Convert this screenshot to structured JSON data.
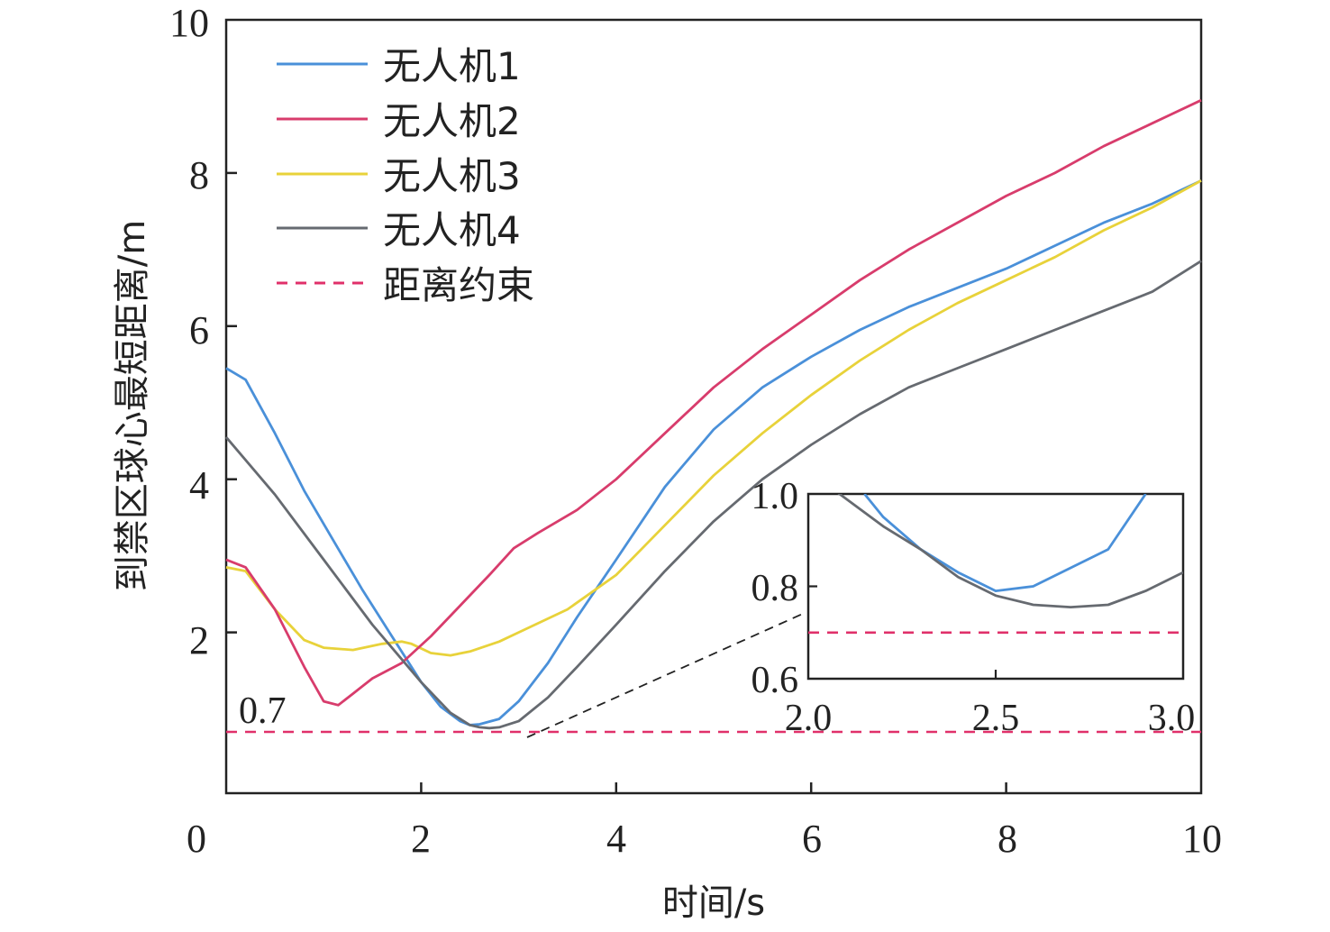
{
  "chart_data": {
    "type": "line",
    "title": "",
    "xlabel": "时间/s",
    "ylabel": "到禁区球心最短距离/m",
    "xlim": [
      0,
      10
    ],
    "ylim": [
      -0.1,
      10
    ],
    "x_ticks": [
      "0",
      "2",
      "4",
      "6",
      "8",
      "10"
    ],
    "y_ticks": [
      "2",
      "4",
      "6",
      "8",
      "10"
    ],
    "grid": false,
    "legend_position": "top-left",
    "series": [
      {
        "name": "无人机1",
        "color": "#4a90d9",
        "x": [
          0,
          0.2,
          0.5,
          0.8,
          1.1,
          1.4,
          1.7,
          2.0,
          2.2,
          2.4,
          2.5,
          2.6,
          2.8,
          3.0,
          3.3,
          3.6,
          4.0,
          4.5,
          5.0,
          5.5,
          6.0,
          6.5,
          7.0,
          7.5,
          8.0,
          8.5,
          9.0,
          9.5,
          10.0
        ],
        "y": [
          5.45,
          5.3,
          4.6,
          3.85,
          3.2,
          2.55,
          1.95,
          1.35,
          1.03,
          0.84,
          0.79,
          0.8,
          0.87,
          1.1,
          1.6,
          2.2,
          2.95,
          3.9,
          4.65,
          5.2,
          5.6,
          5.95,
          6.25,
          6.5,
          6.75,
          7.05,
          7.35,
          7.6,
          7.9
        ]
      },
      {
        "name": "无人机2",
        "color": "#d83c6c",
        "x": [
          0,
          0.2,
          0.5,
          0.8,
          1.0,
          1.15,
          1.3,
          1.5,
          1.8,
          2.1,
          2.4,
          2.7,
          2.95,
          3.2,
          3.6,
          4.0,
          4.5,
          5.0,
          5.5,
          6.0,
          6.5,
          7.0,
          7.5,
          8.0,
          8.5,
          9.0,
          9.5,
          10.0
        ],
        "y": [
          2.95,
          2.85,
          2.3,
          1.55,
          1.1,
          1.05,
          1.2,
          1.4,
          1.6,
          1.95,
          2.35,
          2.75,
          3.1,
          3.3,
          3.6,
          4.0,
          4.6,
          5.2,
          5.7,
          6.15,
          6.6,
          7.0,
          7.35,
          7.7,
          8.0,
          8.35,
          8.65,
          8.95
        ]
      },
      {
        "name": "无人机3",
        "color": "#e8d23a",
        "x": [
          0,
          0.2,
          0.5,
          0.8,
          1.0,
          1.3,
          1.6,
          1.8,
          1.9,
          2.1,
          2.3,
          2.5,
          2.8,
          3.0,
          3.5,
          4.0,
          4.5,
          5.0,
          5.5,
          6.0,
          6.5,
          7.0,
          7.5,
          8.0,
          8.5,
          9.0,
          9.5,
          10.0
        ],
        "y": [
          2.85,
          2.8,
          2.3,
          1.9,
          1.8,
          1.77,
          1.85,
          1.88,
          1.85,
          1.73,
          1.7,
          1.75,
          1.88,
          2.0,
          2.3,
          2.75,
          3.4,
          4.05,
          4.6,
          5.1,
          5.55,
          5.95,
          6.3,
          6.6,
          6.9,
          7.25,
          7.55,
          7.9
        ]
      },
      {
        "name": "无人机4",
        "color": "#666a70",
        "x": [
          0,
          0.5,
          1.0,
          1.5,
          2.0,
          2.3,
          2.5,
          2.6,
          2.7,
          2.8,
          3.0,
          3.3,
          3.6,
          4.0,
          4.5,
          5.0,
          5.5,
          6.0,
          6.5,
          7.0,
          7.5,
          8.0,
          8.5,
          9.0,
          9.5,
          10.0
        ],
        "y": [
          4.55,
          3.8,
          2.95,
          2.1,
          1.35,
          0.95,
          0.79,
          0.76,
          0.75,
          0.76,
          0.84,
          1.15,
          1.55,
          2.1,
          2.8,
          3.45,
          4.0,
          4.45,
          4.85,
          5.2,
          5.45,
          5.7,
          5.95,
          6.2,
          6.45,
          6.85
        ]
      },
      {
        "name": "距离约束",
        "color": "#e0306a",
        "style": "dashed",
        "x": [
          0,
          10
        ],
        "y": [
          0.7,
          0.7
        ]
      }
    ],
    "annotations": [
      {
        "text": "0.7",
        "x": 0.1,
        "y": 0.7
      }
    ],
    "inset": {
      "xlim": [
        2.0,
        3.0
      ],
      "ylim": [
        0.6,
        1.0
      ],
      "x_ticks": [
        "2.0",
        "2.5",
        "3.0"
      ],
      "y_ticks": [
        "0.6",
        "0.8",
        "1.0"
      ],
      "series": [
        {
          "name": "无人机1",
          "color": "#4a90d9",
          "x": [
            2.15,
            2.2,
            2.3,
            2.4,
            2.5,
            2.6,
            2.7,
            2.8,
            2.9
          ],
          "y": [
            1.0,
            0.95,
            0.88,
            0.83,
            0.79,
            0.8,
            0.84,
            0.88,
            1.0
          ]
        },
        {
          "name": "无人机4",
          "color": "#666a70",
          "x": [
            2.0,
            2.1,
            2.2,
            2.3,
            2.4,
            2.5,
            2.6,
            2.7,
            2.8,
            2.9,
            3.0
          ],
          "y": [
            1.05,
            0.99,
            0.93,
            0.88,
            0.82,
            0.78,
            0.76,
            0.755,
            0.76,
            0.79,
            0.83
          ]
        },
        {
          "name": "距离约束",
          "color": "#e0306a",
          "style": "dashed",
          "x": [
            2.0,
            3.0
          ],
          "y": [
            0.7,
            0.7
          ]
        }
      ]
    }
  }
}
